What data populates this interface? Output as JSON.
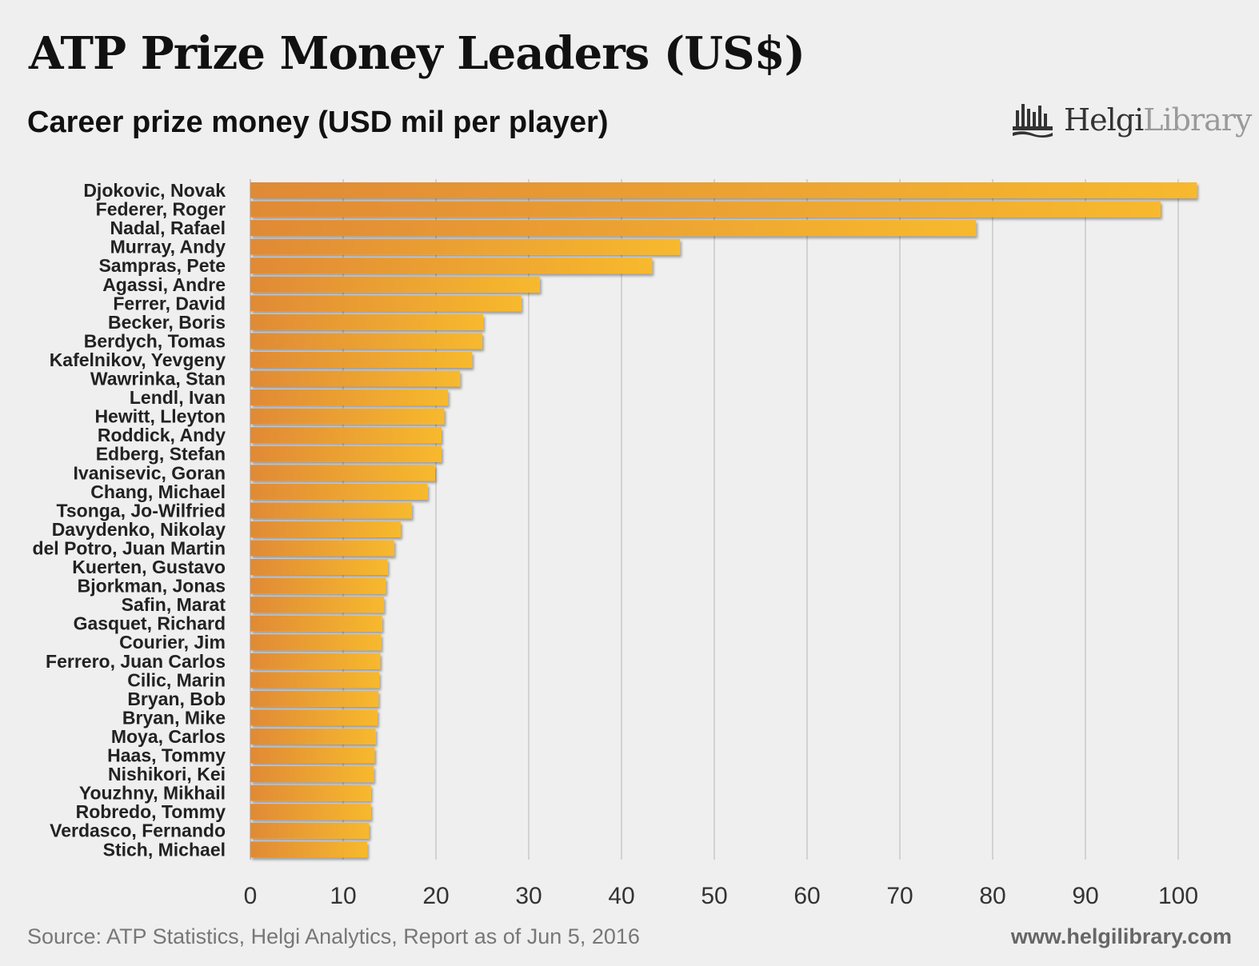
{
  "title": "ATP Prize Money Leaders (US$)",
  "subtitle": "Career prize money (USD mil per player)",
  "brand": {
    "name_bold": "Helgi",
    "name_light": "Library",
    "logo_icon": "helgi-library-logo-icon"
  },
  "footer": {
    "source": "Source: ATP Statistics, Helgi Analytics, Report as of Jun 5, 2016",
    "url": "www.helgilibrary.com"
  },
  "colors": {
    "bar_start": "#e08a36",
    "bar_end": "#f7b92d",
    "grid": "#c8c8c8",
    "text": "#222222"
  },
  "chart_data": {
    "type": "bar",
    "orientation": "horizontal",
    "categories": [
      "Djokovic, Novak",
      "Federer, Roger",
      "Nadal, Rafael",
      "Murray, Andy",
      "Sampras, Pete",
      "Agassi, Andre",
      "Ferrer, David",
      "Becker, Boris",
      "Berdych, Tomas",
      "Kafelnikov, Yevgeny",
      "Wawrinka, Stan",
      "Lendl, Ivan",
      "Hewitt, Lleyton",
      "Roddick, Andy",
      "Edberg, Stefan",
      "Ivanisevic, Goran",
      "Chang, Michael",
      "Tsonga, Jo-Wilfried",
      "Davydenko, Nikolay",
      "del Potro, Juan Martin",
      "Kuerten, Gustavo",
      "Bjorkman, Jonas",
      "Safin, Marat",
      "Gasquet, Richard",
      "Courier, Jim",
      "Ferrero, Juan Carlos",
      "Cilic, Marin",
      "Bryan, Bob",
      "Bryan, Mike",
      "Moya, Carlos",
      "Haas, Tommy",
      "Nishikori, Kei",
      "Youzhny, Mikhail",
      "Robredo, Tommy",
      "Verdasco, Fernando",
      "Stich, Michael"
    ],
    "values": [
      102.0,
      98.1,
      78.2,
      46.3,
      43.3,
      31.2,
      29.2,
      25.1,
      25.0,
      23.9,
      22.6,
      21.3,
      20.9,
      20.6,
      20.6,
      19.9,
      19.1,
      17.4,
      16.2,
      15.5,
      14.8,
      14.6,
      14.4,
      14.2,
      14.1,
      14.0,
      13.9,
      13.8,
      13.7,
      13.5,
      13.4,
      13.3,
      13.0,
      13.0,
      12.8,
      12.6
    ],
    "xlim": [
      0,
      100
    ],
    "xticks": [
      0,
      10,
      20,
      30,
      40,
      50,
      60,
      70,
      80,
      90,
      100
    ],
    "grid": "vertical"
  }
}
